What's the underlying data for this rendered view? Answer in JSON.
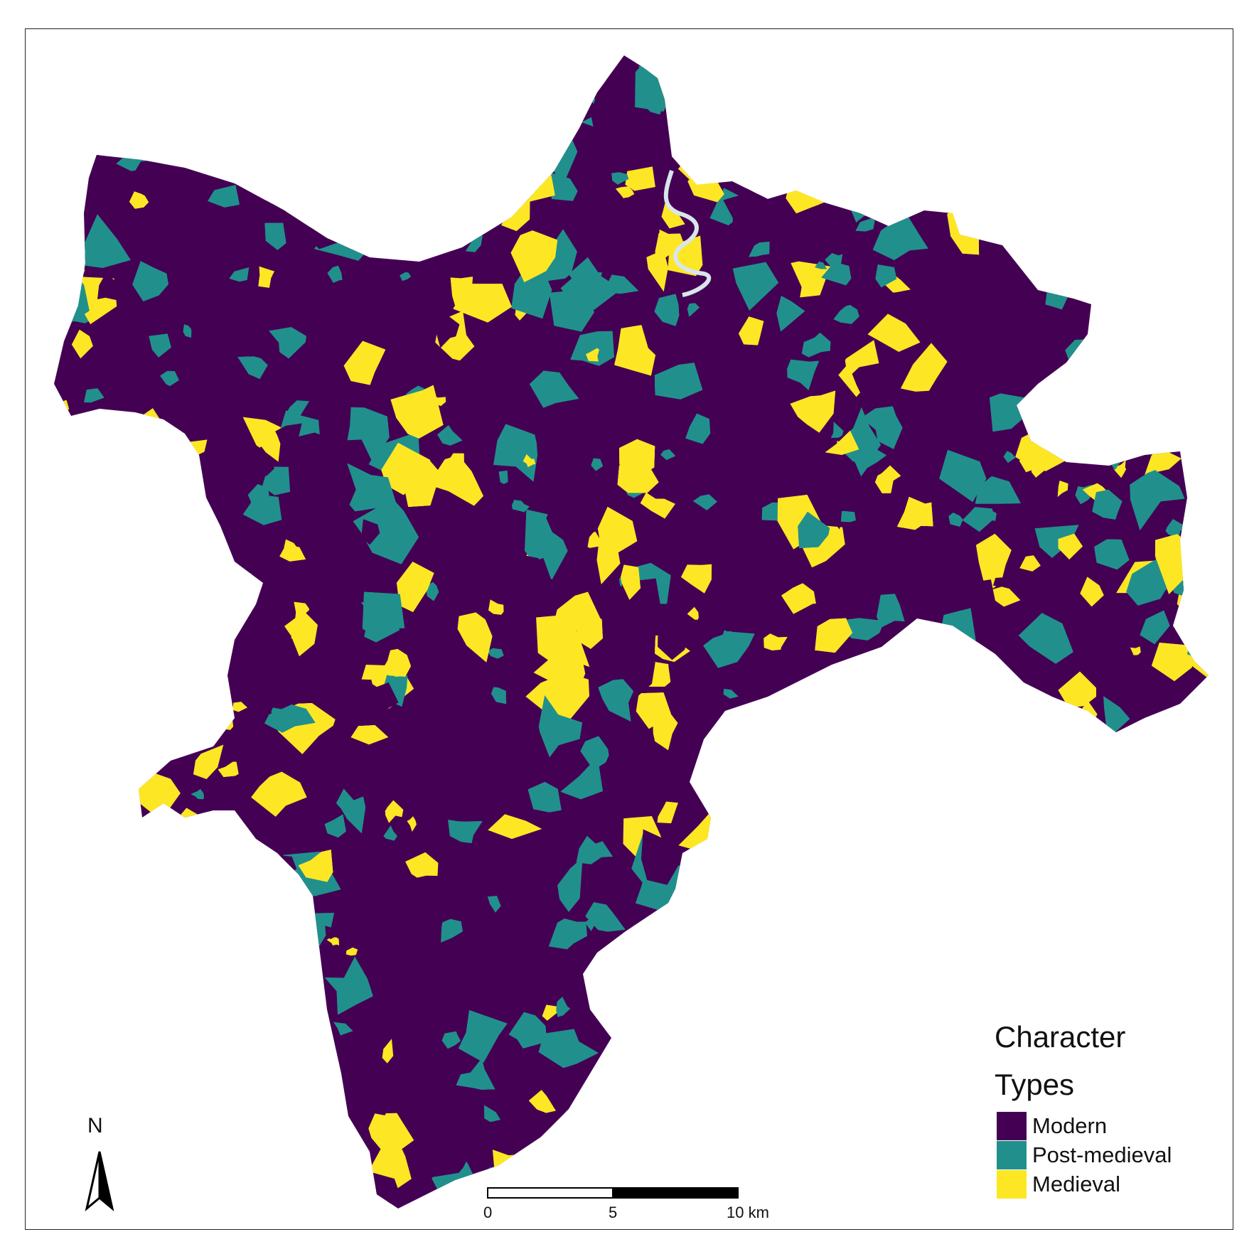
{
  "map": {
    "legend": {
      "title_line1": "Character",
      "title_line2": "Types",
      "items": [
        {
          "label": "Modern",
          "color": "#440154"
        },
        {
          "label": "Post-medieval",
          "color": "#21908C"
        },
        {
          "label": "Medieval",
          "color": "#FDE725"
        }
      ]
    },
    "scale_bar": {
      "tick_0": "0",
      "tick_5": "5",
      "tick_10": "10 km"
    },
    "north_arrow": {
      "label": "N",
      "icon": "north-arrow-icon"
    },
    "river_color": "#d8e6ec"
  }
}
